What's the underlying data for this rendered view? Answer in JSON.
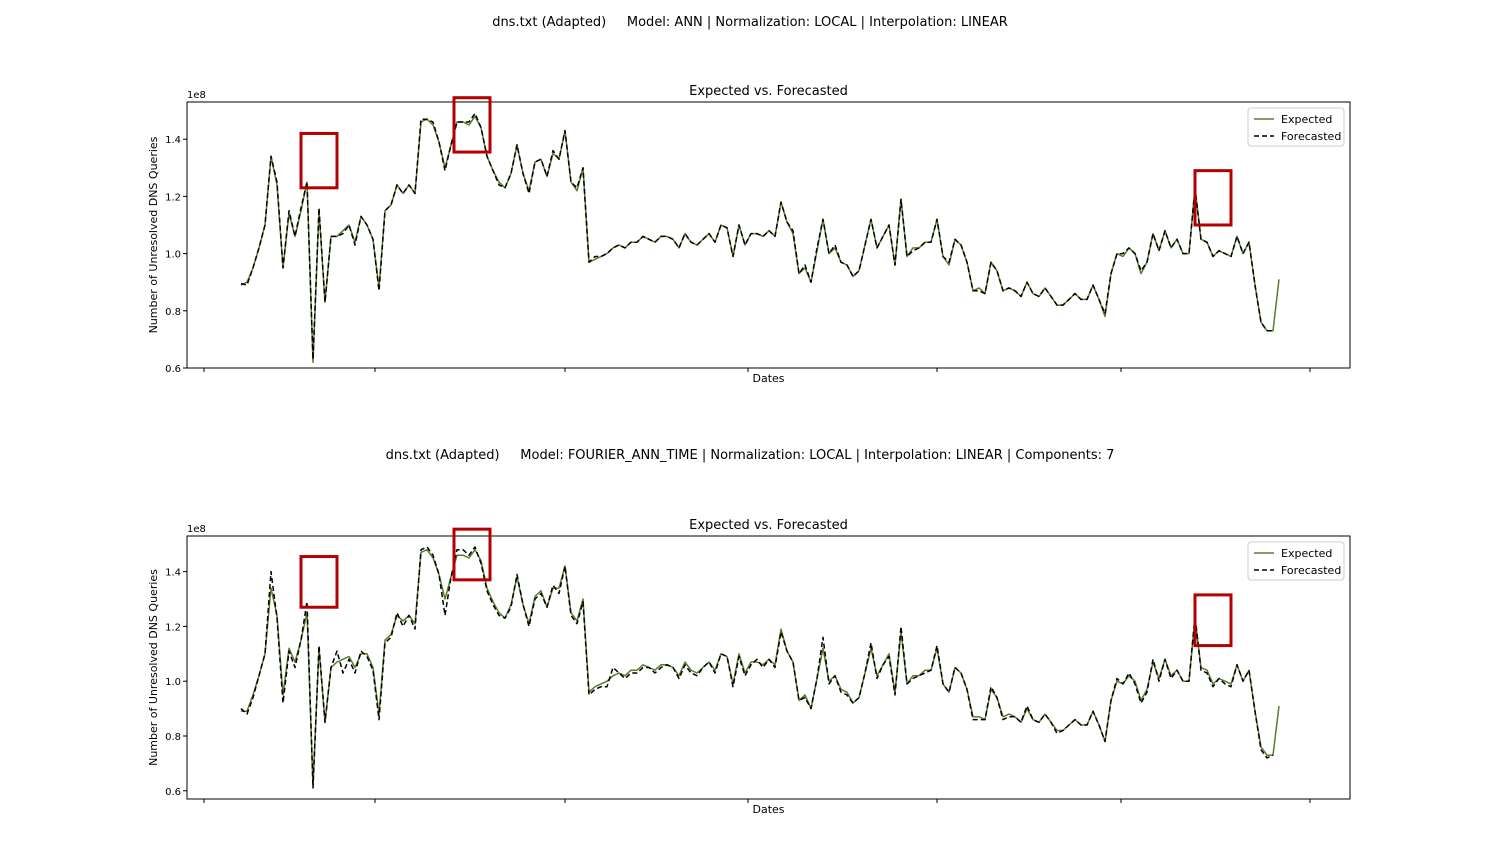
{
  "figure": {
    "panels": [
      {
        "suptitle": "dns.txt (Adapted)     Model: ANN | Normalization: LOCAL | Interpolation: LINEAR"
      },
      {
        "suptitle": "dns.txt (Adapted)     Model: FOURIER_ANN_TIME | Normalization: LOCAL | Interpolation: LINEAR | Components: 7"
      }
    ]
  },
  "colors": {
    "expected": "#5a7d2a",
    "forecasted": "#000000",
    "highlight_box": "#b30000"
  },
  "chart_data": [
    {
      "type": "line",
      "title": "Expected vs. Forecasted",
      "xlabel": "Dates",
      "ylabel": "Number of Unresolved DNS Queries",
      "y_scale_label": "1e8",
      "yticks": [
        "0.6",
        "0.8",
        "1.0",
        "1.2",
        "1.4"
      ],
      "ylim": [
        0.6,
        1.53
      ],
      "xlim": [
        0,
        176
      ],
      "legend": {
        "placement": "top-right",
        "entries": [
          "Expected",
          "Forecasted"
        ]
      },
      "grid": false,
      "highlights": [
        {
          "x": [
            10,
            16
          ],
          "y": [
            1.23,
            1.42
          ]
        },
        {
          "x": [
            35.5,
            41.5
          ],
          "y": [
            1.355,
            1.545
          ]
        },
        {
          "x": [
            159,
            165
          ],
          "y": [
            1.1,
            1.29
          ]
        }
      ],
      "series": [
        {
          "name": "Expected",
          "values": [
            0.89,
            0.9,
            0.95,
            1.02,
            1.1,
            1.34,
            1.24,
            0.95,
            1.14,
            1.06,
            1.15,
            1.25,
            0.62,
            1.15,
            0.83,
            1.06,
            1.06,
            1.08,
            1.1,
            1.04,
            1.13,
            1.1,
            1.05,
            0.88,
            1.15,
            1.17,
            1.24,
            1.21,
            1.24,
            1.21,
            1.46,
            1.47,
            1.45,
            1.39,
            1.3,
            1.38,
            1.46,
            1.46,
            1.45,
            1.48,
            1.44,
            1.34,
            1.29,
            1.25,
            1.23,
            1.28,
            1.38,
            1.28,
            1.22,
            1.32,
            1.33,
            1.27,
            1.35,
            1.33,
            1.43,
            1.25,
            1.22,
            1.3,
            0.97,
            0.98,
            0.99,
            1.0,
            1.02,
            1.03,
            1.02,
            1.04,
            1.04,
            1.06,
            1.05,
            1.04,
            1.06,
            1.06,
            1.05,
            1.02,
            1.07,
            1.04,
            1.03,
            1.05,
            1.07,
            1.04,
            1.1,
            1.09,
            0.99,
            1.1,
            1.03,
            1.07,
            1.07,
            1.06,
            1.08,
            1.06,
            1.18,
            1.11,
            1.07,
            0.93,
            0.95,
            0.9,
            1.01,
            1.12,
            1.0,
            1.02,
            0.97,
            0.96,
            0.92,
            0.94,
            1.03,
            1.12,
            1.02,
            1.06,
            1.1,
            0.96,
            1.19,
            0.99,
            1.02,
            1.02,
            1.04,
            1.04,
            1.12,
            0.99,
            0.96,
            1.05,
            1.03,
            0.97,
            0.87,
            0.88,
            0.86,
            0.97,
            0.94,
            0.87,
            0.88,
            0.87,
            0.85,
            0.9,
            0.86,
            0.85,
            0.88,
            0.85,
            0.82,
            0.82,
            0.84,
            0.86,
            0.84,
            0.84,
            0.89,
            0.84,
            0.78,
            0.93,
            1.0,
            0.99,
            1.02,
            1.0,
            0.93,
            0.97,
            1.07,
            1.01,
            1.08,
            1.02,
            1.05,
            1.0,
            1.0,
            1.23,
            1.05,
            1.04,
            0.99,
            1.01,
            1.0,
            0.99,
            1.06,
            1.0,
            1.04,
            0.89,
            0.76,
            0.73,
            0.73,
            0.91
          ],
          "x_start": 0
        },
        {
          "name": "Forecasted",
          "values": [
            0.895,
            0.89,
            0.95,
            1.02,
            1.1,
            1.34,
            1.25,
            0.95,
            1.15,
            1.06,
            1.16,
            1.25,
            0.63,
            1.16,
            0.83,
            1.06,
            1.06,
            1.07,
            1.1,
            1.03,
            1.13,
            1.1,
            1.05,
            0.87,
            1.15,
            1.17,
            1.24,
            1.21,
            1.24,
            1.21,
            1.47,
            1.47,
            1.46,
            1.39,
            1.29,
            1.38,
            1.46,
            1.46,
            1.46,
            1.49,
            1.44,
            1.34,
            1.29,
            1.24,
            1.23,
            1.28,
            1.38,
            1.28,
            1.21,
            1.32,
            1.33,
            1.27,
            1.36,
            1.33,
            1.43,
            1.25,
            1.23,
            1.3,
            0.97,
            0.99,
            0.99,
            1.0,
            1.02,
            1.03,
            1.02,
            1.04,
            1.04,
            1.06,
            1.05,
            1.04,
            1.06,
            1.06,
            1.05,
            1.02,
            1.07,
            1.04,
            1.03,
            1.05,
            1.07,
            1.04,
            1.1,
            1.09,
            0.99,
            1.1,
            1.03,
            1.07,
            1.07,
            1.06,
            1.08,
            1.06,
            1.18,
            1.11,
            1.08,
            0.93,
            0.96,
            0.9,
            1.02,
            1.12,
            1.0,
            1.03,
            0.97,
            0.96,
            0.92,
            0.94,
            1.03,
            1.12,
            1.02,
            1.06,
            1.1,
            0.96,
            1.19,
            0.99,
            1.01,
            1.02,
            1.04,
            1.04,
            1.12,
            0.99,
            0.97,
            1.05,
            1.03,
            0.97,
            0.87,
            0.87,
            0.86,
            0.97,
            0.94,
            0.87,
            0.88,
            0.87,
            0.85,
            0.9,
            0.86,
            0.85,
            0.88,
            0.85,
            0.82,
            0.82,
            0.84,
            0.86,
            0.84,
            0.84,
            0.89,
            0.84,
            0.79,
            0.93,
            1.0,
            1.0,
            1.02,
            1.0,
            0.94,
            0.97,
            1.07,
            1.01,
            1.08,
            1.02,
            1.05,
            1.0,
            1.0,
            1.23,
            1.05,
            1.04,
            0.99,
            1.01,
            1.0,
            0.99,
            1.06,
            1.0,
            1.04,
            0.89,
            0.76,
            0.73,
            0.73
          ],
          "x_start": 0
        }
      ]
    },
    {
      "type": "line",
      "title": "Expected vs. Forecasted",
      "xlabel": "Dates",
      "ylabel": "Number of Unresolved DNS Queries",
      "y_scale_label": "1e8",
      "yticks": [
        "0.6",
        "0.8",
        "1.0",
        "1.2",
        "1.4"
      ],
      "ylim": [
        0.57,
        1.53
      ],
      "xlim": [
        0,
        176
      ],
      "legend": {
        "placement": "top-right",
        "entries": [
          "Expected",
          "Forecasted"
        ]
      },
      "grid": false,
      "highlights": [
        {
          "x": [
            10,
            16
          ],
          "y": [
            1.27,
            1.455
          ]
        },
        {
          "x": [
            35.5,
            41.5
          ],
          "y": [
            1.37,
            1.555
          ]
        },
        {
          "x": [
            159,
            165
          ],
          "y": [
            1.13,
            1.315
          ]
        }
      ],
      "series": [
        {
          "name": "Expected",
          "values": [
            0.89,
            0.89,
            0.95,
            1.02,
            1.1,
            1.34,
            1.24,
            0.95,
            1.12,
            1.07,
            1.15,
            1.25,
            0.62,
            1.12,
            0.85,
            1.05,
            1.07,
            1.08,
            1.09,
            1.05,
            1.1,
            1.1,
            1.05,
            0.88,
            1.15,
            1.17,
            1.24,
            1.22,
            1.24,
            1.21,
            1.47,
            1.48,
            1.45,
            1.39,
            1.3,
            1.38,
            1.46,
            1.46,
            1.45,
            1.48,
            1.44,
            1.34,
            1.29,
            1.25,
            1.23,
            1.28,
            1.38,
            1.28,
            1.21,
            1.31,
            1.33,
            1.27,
            1.34,
            1.34,
            1.42,
            1.25,
            1.22,
            1.3,
            0.96,
            0.98,
            0.99,
            1.0,
            1.02,
            1.03,
            1.02,
            1.04,
            1.04,
            1.06,
            1.05,
            1.04,
            1.06,
            1.06,
            1.05,
            1.02,
            1.07,
            1.04,
            1.03,
            1.05,
            1.07,
            1.04,
            1.1,
            1.09,
            0.99,
            1.1,
            1.03,
            1.07,
            1.07,
            1.06,
            1.08,
            1.06,
            1.19,
            1.11,
            1.07,
            0.93,
            0.95,
            0.9,
            1.01,
            1.12,
            1.0,
            1.02,
            0.97,
            0.96,
            0.92,
            0.94,
            1.03,
            1.12,
            1.02,
            1.06,
            1.1,
            0.96,
            1.18,
            0.99,
            1.02,
            1.02,
            1.04,
            1.04,
            1.12,
            0.99,
            0.96,
            1.05,
            1.03,
            0.97,
            0.87,
            0.87,
            0.86,
            0.97,
            0.94,
            0.87,
            0.88,
            0.87,
            0.85,
            0.9,
            0.86,
            0.85,
            0.88,
            0.85,
            0.82,
            0.82,
            0.84,
            0.86,
            0.84,
            0.84,
            0.89,
            0.84,
            0.78,
            0.93,
            1.0,
            0.99,
            1.02,
            1.0,
            0.93,
            0.97,
            1.07,
            1.01,
            1.08,
            1.02,
            1.04,
            1.0,
            1.0,
            1.23,
            1.05,
            1.04,
            0.99,
            1.01,
            1.0,
            0.99,
            1.06,
            1.0,
            1.04,
            0.89,
            0.76,
            0.73,
            0.73,
            0.91
          ],
          "x_start": 0
        },
        {
          "name": "Forecasted",
          "values": [
            0.9,
            0.88,
            0.94,
            1.02,
            1.1,
            1.4,
            1.23,
            0.92,
            1.11,
            1.05,
            1.15,
            1.29,
            0.61,
            1.13,
            0.85,
            1.05,
            1.11,
            1.03,
            1.08,
            1.03,
            1.11,
            1.09,
            1.04,
            0.86,
            1.14,
            1.16,
            1.25,
            1.2,
            1.24,
            1.19,
            1.48,
            1.49,
            1.46,
            1.39,
            1.24,
            1.38,
            1.48,
            1.48,
            1.46,
            1.49,
            1.43,
            1.33,
            1.28,
            1.24,
            1.23,
            1.27,
            1.39,
            1.28,
            1.2,
            1.3,
            1.32,
            1.27,
            1.35,
            1.32,
            1.42,
            1.24,
            1.21,
            1.29,
            0.95,
            0.97,
            0.98,
            0.98,
            1.05,
            1.03,
            1.01,
            1.03,
            1.03,
            1.05,
            1.05,
            1.03,
            1.05,
            1.06,
            1.05,
            1.01,
            1.06,
            1.03,
            1.02,
            1.05,
            1.07,
            1.03,
            1.1,
            1.09,
            0.98,
            1.09,
            1.02,
            1.06,
            1.08,
            1.05,
            1.08,
            1.05,
            1.18,
            1.11,
            1.07,
            0.93,
            0.94,
            0.9,
            1.01,
            1.16,
            0.99,
            1.02,
            0.96,
            0.95,
            0.92,
            0.94,
            1.03,
            1.14,
            1.01,
            1.06,
            1.09,
            0.95,
            1.2,
            0.99,
            1.01,
            1.02,
            1.03,
            1.04,
            1.13,
            0.99,
            0.96,
            1.05,
            1.03,
            0.97,
            0.86,
            0.86,
            0.86,
            0.98,
            0.94,
            0.86,
            0.87,
            0.87,
            0.85,
            0.91,
            0.86,
            0.85,
            0.88,
            0.85,
            0.81,
            0.82,
            0.84,
            0.86,
            0.84,
            0.84,
            0.89,
            0.84,
            0.78,
            0.93,
            1.01,
            0.99,
            1.03,
            0.99,
            0.92,
            0.96,
            1.08,
            1.0,
            1.08,
            1.01,
            1.04,
            1.0,
            1.0,
            1.24,
            1.04,
            1.03,
            0.98,
            1.01,
            0.99,
            0.98,
            1.06,
            1.0,
            1.04,
            0.89,
            0.75,
            0.72,
            0.73
          ],
          "x_start": 0
        }
      ]
    }
  ]
}
